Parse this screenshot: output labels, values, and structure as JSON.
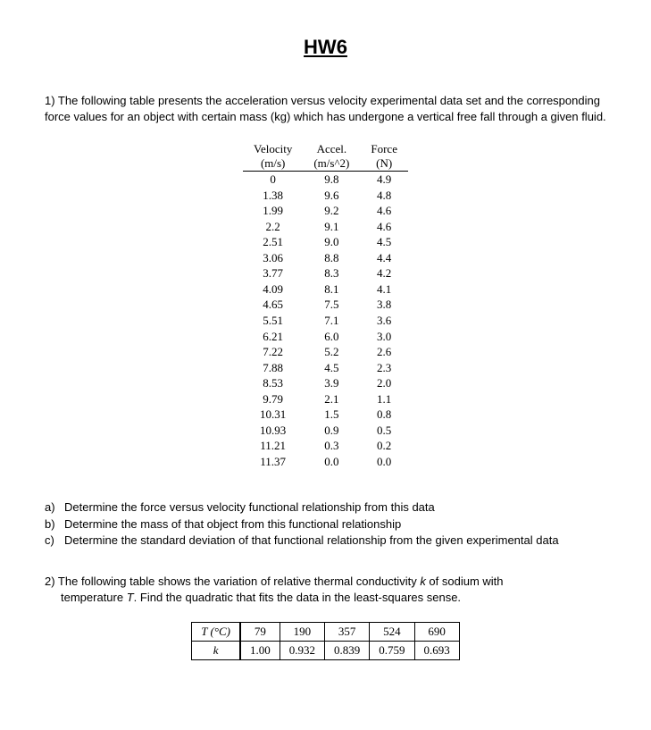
{
  "title": "HW6",
  "q1": {
    "intro": "1) The following table presents the acceleration versus velocity experimental data set and the corresponding force values for an object with certain mass (kg) which has undergone a vertical free fall through a given fluid.",
    "headers": [
      {
        "top": "Velocity",
        "unit": "(m/s)"
      },
      {
        "top": "Accel.",
        "unit": "(m/s^2)"
      },
      {
        "top": "Force",
        "unit": "(N)"
      }
    ],
    "rows": [
      [
        "0",
        "9.8",
        "4.9"
      ],
      [
        "1.38",
        "9.6",
        "4.8"
      ],
      [
        "1.99",
        "9.2",
        "4.6"
      ],
      [
        "2.2",
        "9.1",
        "4.6"
      ],
      [
        "2.51",
        "9.0",
        "4.5"
      ],
      [
        "3.06",
        "8.8",
        "4.4"
      ],
      [
        "3.77",
        "8.3",
        "4.2"
      ],
      [
        "4.09",
        "8.1",
        "4.1"
      ],
      [
        "4.65",
        "7.5",
        "3.8"
      ],
      [
        "5.51",
        "7.1",
        "3.6"
      ],
      [
        "6.21",
        "6.0",
        "3.0"
      ],
      [
        "7.22",
        "5.2",
        "2.6"
      ],
      [
        "7.88",
        "4.5",
        "2.3"
      ],
      [
        "8.53",
        "3.9",
        "2.0"
      ],
      [
        "9.79",
        "2.1",
        "1.1"
      ],
      [
        "10.31",
        "1.5",
        "0.8"
      ],
      [
        "10.93",
        "0.9",
        "0.5"
      ],
      [
        "11.21",
        "0.3",
        "0.2"
      ],
      [
        "11.37",
        "0.0",
        "0.0"
      ]
    ],
    "subs": {
      "a": {
        "label": "a)",
        "text": "Determine the force versus velocity functional relationship from this data"
      },
      "b": {
        "label": "b)",
        "text": "Determine the mass of that object from this functional relationship"
      },
      "c": {
        "label": "c)",
        "text": "Determine the standard deviation of that functional relationship from the given  experimental data"
      }
    }
  },
  "q2": {
    "line1_pre": "2) The following table shows the variation of relative thermal conductivity ",
    "k": "k",
    "line1_post": " of sodium with",
    "line2_pre": "temperature ",
    "T": "T",
    "line2_post": ". Find the quadratic that fits the data in the least-squares sense.",
    "row1label": "T (°C)",
    "row2label": "k",
    "cols": [
      "79",
      "190",
      "357",
      "524",
      "690"
    ],
    "vals": [
      "1.00",
      "0.932",
      "0.839",
      "0.759",
      "0.693"
    ]
  }
}
